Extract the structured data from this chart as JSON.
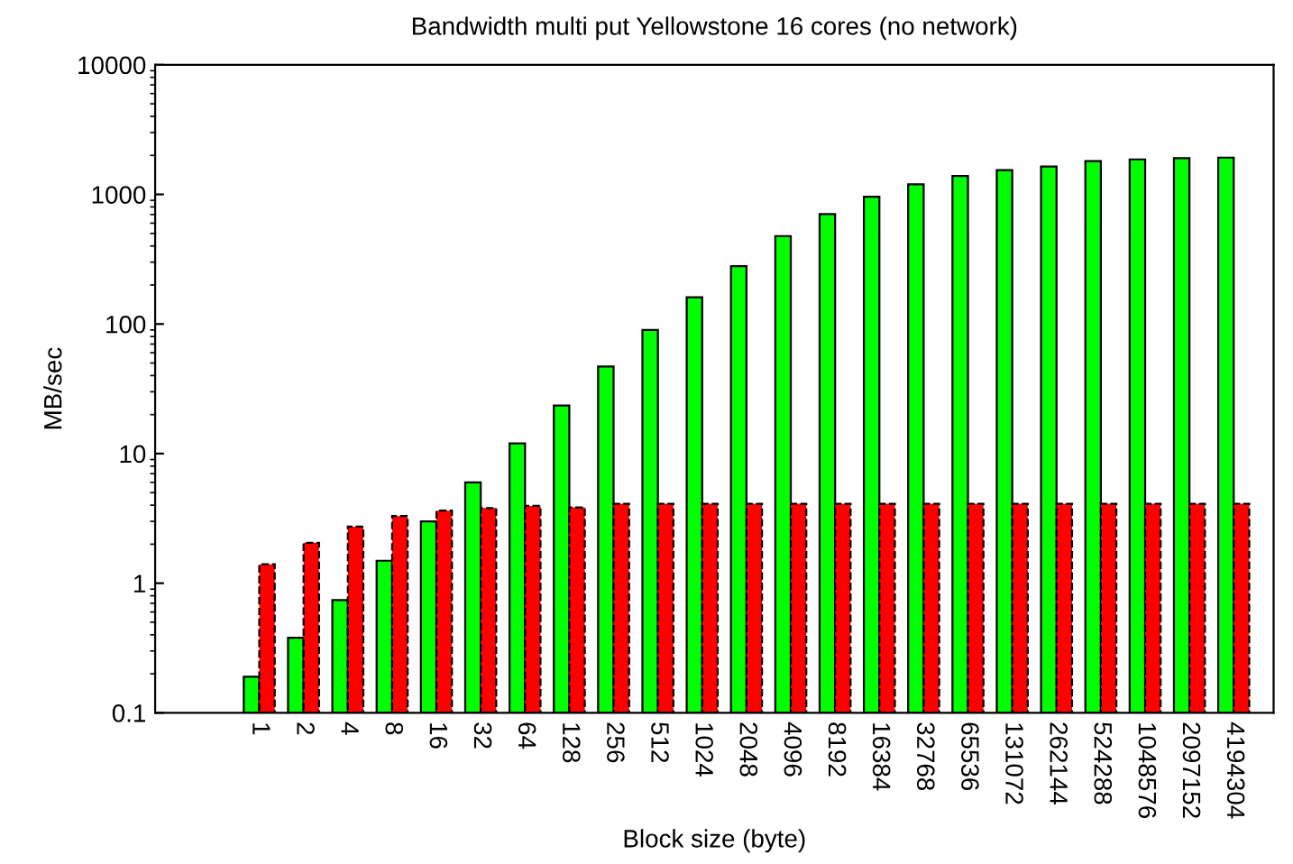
{
  "chart_data": {
    "type": "bar",
    "title": "Bandwidth multi put Yellowstone 16 cores (no network)",
    "xlabel": "Block size (byte)",
    "ylabel": "MB/sec",
    "categories": [
      "1",
      "2",
      "4",
      "8",
      "16",
      "32",
      "64",
      "128",
      "256",
      "512",
      "1024",
      "2048",
      "4096",
      "8192",
      "16384",
      "32768",
      "65536",
      "131072",
      "262144",
      "524288",
      "1048576",
      "2097152",
      "4194304"
    ],
    "series": [
      {
        "color": "#00ff00",
        "values": [
          0.19,
          0.38,
          0.74,
          1.49,
          3.0,
          6.0,
          12,
          23.5,
          47,
          90,
          161,
          279,
          477,
          706,
          959,
          1197,
          1387,
          1542,
          1644,
          1808,
          1862,
          1904,
          1923
        ]
      },
      {
        "color": "#ff0000",
        "line_style": "dashed",
        "values": [
          1.4,
          2.05,
          2.73,
          3.3,
          3.63,
          3.8,
          3.95,
          3.85,
          4.1,
          4.1,
          4.1,
          4.1,
          4.1,
          4.1,
          4.1,
          4.1,
          4.1,
          4.1,
          4.1,
          4.1,
          4.1,
          4.1,
          4.1
        ]
      }
    ],
    "log": "y",
    "ylim": [
      0.1,
      10000
    ],
    "yticks": [
      0.1,
      1,
      10,
      100,
      1000,
      10000
    ],
    "grid": false
  }
}
